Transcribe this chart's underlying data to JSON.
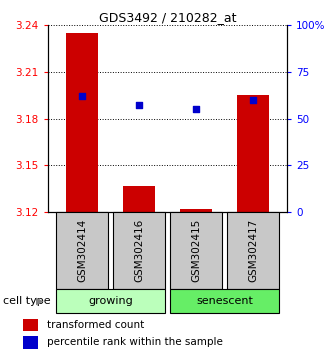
{
  "title": "GDS3492 / 210282_at",
  "samples": [
    "GSM302414",
    "GSM302416",
    "GSM302415",
    "GSM302417"
  ],
  "groups": [
    "growing",
    "growing",
    "senescent",
    "senescent"
  ],
  "group_colors": {
    "growing": "#bbffbb",
    "senescent": "#66ee66"
  },
  "bar_values": [
    3.235,
    3.137,
    3.122,
    3.195
  ],
  "percentile_values": [
    62,
    57,
    55,
    60
  ],
  "ylim_left": [
    3.12,
    3.24
  ],
  "ylim_right": [
    0,
    100
  ],
  "yticks_left": [
    3.12,
    3.15,
    3.18,
    3.21,
    3.24
  ],
  "yticks_right": [
    0,
    25,
    50,
    75,
    100
  ],
  "ytick_labels_left": [
    "3.12",
    "3.15",
    "3.18",
    "3.21",
    "3.24"
  ],
  "ytick_labels_right": [
    "0",
    "25",
    "50",
    "75",
    "100%"
  ],
  "bar_color": "#cc0000",
  "dot_color": "#0000cc",
  "bar_width": 0.55,
  "legend_bar_label": "transformed count",
  "legend_dot_label": "percentile rank within the sample",
  "cell_type_label": "cell type",
  "sample_box_color": "#c8c8c8",
  "title_fontsize": 9,
  "tick_fontsize": 7.5,
  "label_fontsize": 7.5,
  "group_fontsize": 8
}
